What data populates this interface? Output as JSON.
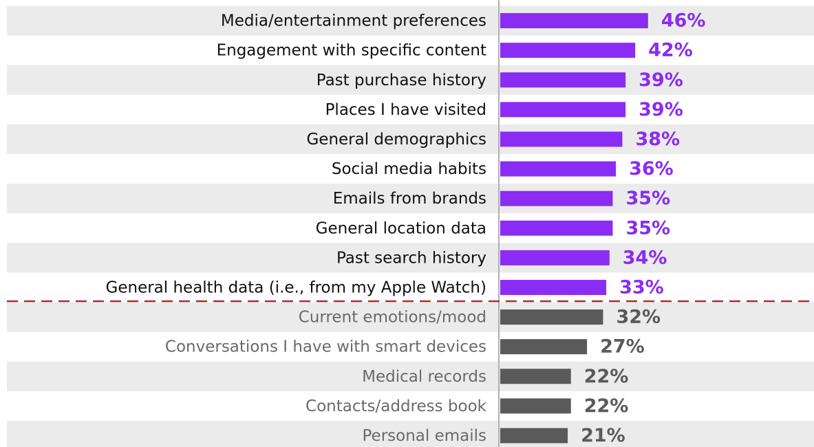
{
  "chart_data": {
    "type": "bar",
    "orientation": "horizontal",
    "categories": [
      "Media/entertainment preferences",
      "Engagement with specific content",
      "Past purchase history",
      "Places I have visited",
      "General demographics",
      "Social media habits",
      "Emails from brands",
      "General location data",
      "Past search history",
      "General health data (i.e., from my Apple Watch)",
      "Current emotions/mood",
      "Conversations I have with smart devices",
      "Medical records",
      "Contacts/address book",
      "Personal emails"
    ],
    "values": [
      46,
      42,
      39,
      39,
      38,
      36,
      35,
      35,
      34,
      33,
      32,
      27,
      22,
      22,
      21
    ],
    "value_labels": [
      "46%",
      "42%",
      "39%",
      "39%",
      "38%",
      "36%",
      "35%",
      "35%",
      "34%",
      "33%",
      "32%",
      "27%",
      "22%",
      "22%",
      "21%"
    ],
    "colors": [
      "#8a2cf3",
      "#8a2cf3",
      "#8a2cf3",
      "#8a2cf3",
      "#8a2cf3",
      "#8a2cf3",
      "#8a2cf3",
      "#8a2cf3",
      "#8a2cf3",
      "#8a2cf3",
      "#5a5a5a",
      "#5a5a5a",
      "#5a5a5a",
      "#5a5a5a",
      "#5a5a5a"
    ],
    "xlim": [
      0,
      100
    ]
  }
}
